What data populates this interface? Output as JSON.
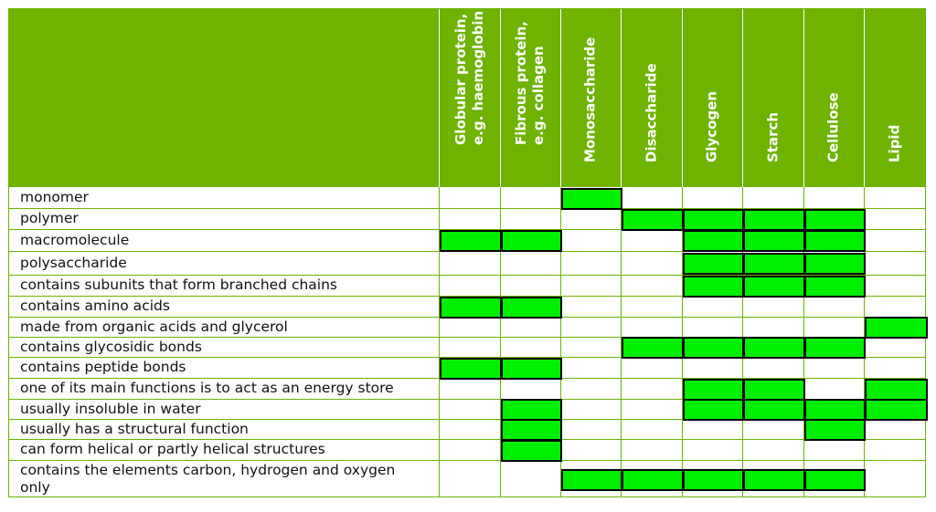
{
  "columns": [
    "Globular protein,\ne.g. haemoglobin",
    "Fibrous protein,\ne.g. collagen",
    "Monosaccharide",
    "Disaccharide",
    "Glycogen",
    "Starch",
    "Cellulose",
    "Lipid"
  ],
  "rows": [
    {
      "label": "monomer",
      "marks": [
        2
      ]
    },
    {
      "label": "polymer",
      "marks": [
        3,
        4,
        5,
        6
      ]
    },
    {
      "label": "macromolecule",
      "marks": [
        0,
        1,
        4,
        5,
        6
      ]
    },
    {
      "label": "polysaccharide",
      "marks": [
        4,
        5,
        6
      ]
    },
    {
      "label": "contains subunits that form branched chains",
      "marks": [
        4,
        5,
        6
      ]
    },
    {
      "label": "contains amino acids",
      "marks": [
        0,
        1
      ]
    },
    {
      "label": "made from organic acids and glycerol",
      "marks": [
        7
      ]
    },
    {
      "label": "contains glycosidic bonds",
      "marks": [
        3,
        4,
        5,
        6
      ]
    },
    {
      "label": "contains peptide bonds",
      "marks": [
        0,
        1
      ]
    },
    {
      "label": "one of its main functions is to act as an energy store",
      "marks": [
        4,
        5,
        7
      ]
    },
    {
      "label": "usually insoluble in water",
      "marks": [
        1,
        4,
        5,
        6,
        7
      ]
    },
    {
      "label": "usually has a structural function",
      "marks": [
        1,
        6
      ]
    },
    {
      "label": "can form helical or partly helical structures",
      "marks": [
        1
      ]
    },
    {
      "label": "contains the elements carbon, hydrogen and oxygen\nonly",
      "marks": [
        2,
        3,
        4,
        5,
        6
      ]
    }
  ],
  "colors": {
    "header": "#6db300",
    "mark": "#00ee00",
    "grid": "#6db300"
  }
}
